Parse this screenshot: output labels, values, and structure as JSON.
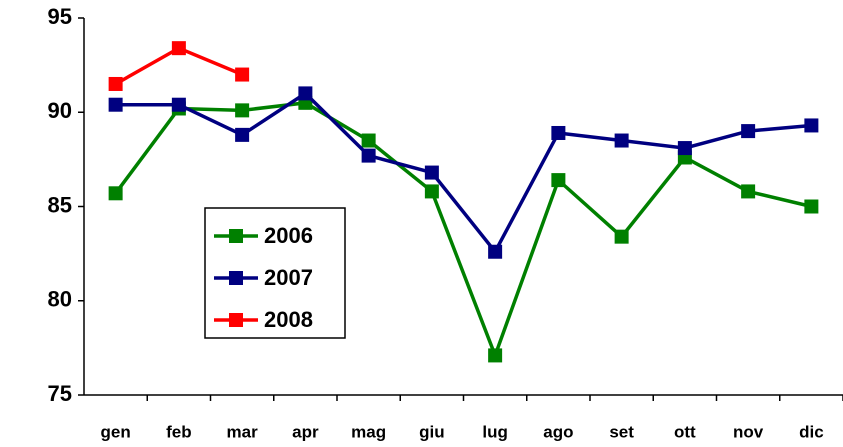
{
  "chart_data": {
    "type": "line",
    "categories": [
      "gen",
      "feb",
      "mar",
      "apr",
      "mag",
      "giu",
      "lug",
      "ago",
      "set",
      "ott",
      "nov",
      "dic"
    ],
    "series": [
      {
        "name": "2006",
        "color": "#008000",
        "values": [
          85.7,
          90.2,
          90.1,
          90.5,
          88.5,
          85.8,
          77.1,
          86.4,
          83.4,
          87.6,
          85.8,
          85.0
        ]
      },
      {
        "name": "2007",
        "color": "#000080",
        "values": [
          90.4,
          90.4,
          88.8,
          91.0,
          87.7,
          86.8,
          82.6,
          88.9,
          88.5,
          88.1,
          89.0,
          89.3
        ]
      },
      {
        "name": "2008",
        "color": "#ff0000",
        "values": [
          91.5,
          93.4,
          92.0,
          null,
          null,
          null,
          null,
          null,
          null,
          null,
          null,
          null
        ]
      }
    ],
    "ylim": [
      75,
      95
    ],
    "yticks": [
      75,
      80,
      85,
      90,
      95
    ],
    "grid": false,
    "legend": "center-left"
  }
}
